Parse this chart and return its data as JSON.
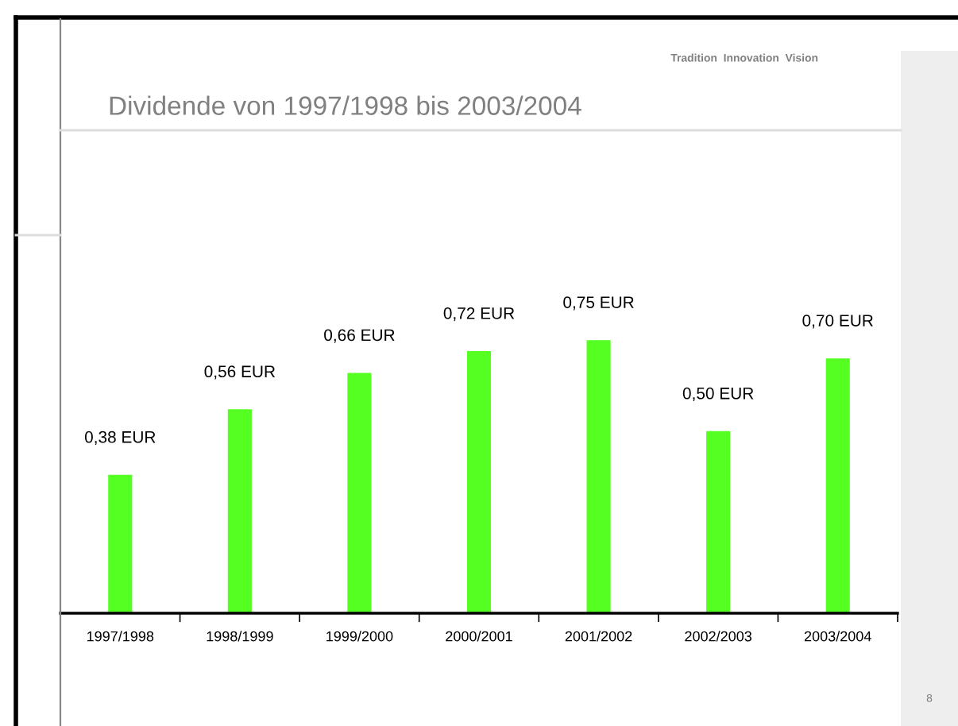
{
  "chart_data": {
    "type": "bar",
    "title": "Dividende von 1997/1998 bis 2003/2004",
    "categories": [
      "1997/1998",
      "1998/1999",
      "1999/2000",
      "2000/2001",
      "2001/2002",
      "2002/2003",
      "2003/2004"
    ],
    "values": [
      0.38,
      0.56,
      0.66,
      0.72,
      0.75,
      0.5,
      0.7
    ],
    "value_labels": [
      "0,38 EUR",
      "0,56 EUR",
      "0,66 EUR",
      "0,72 EUR",
      "0,75 EUR",
      "0,50 EUR",
      "0,70 EUR"
    ],
    "color": "#55ff22",
    "annotations": [
      "Tradition  Innovation  Vision",
      "8"
    ]
  }
}
